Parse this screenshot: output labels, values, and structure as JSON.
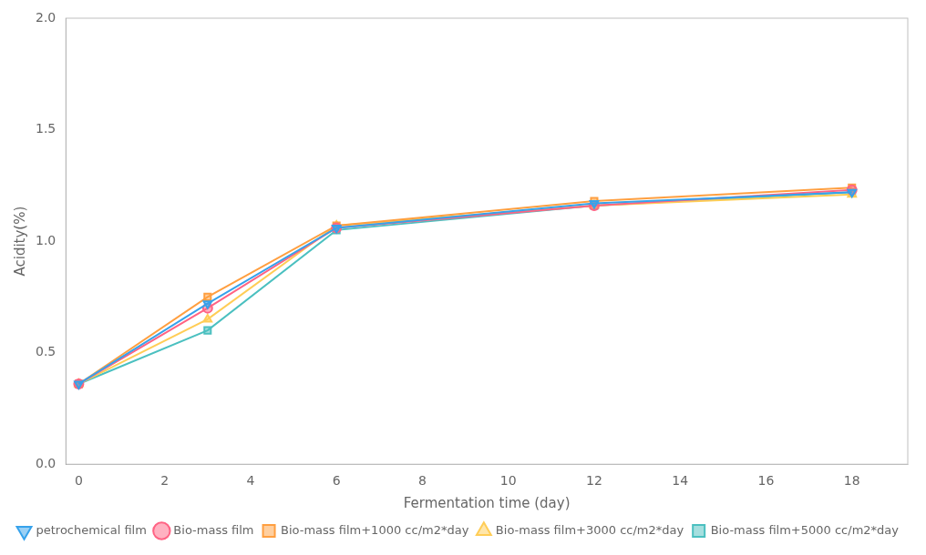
{
  "chart_data": {
    "type": "line",
    "x": [
      0,
      3,
      6,
      12,
      18
    ],
    "series": [
      {
        "name": "petrochemical film",
        "marker": "triangle-down",
        "values": [
          0.36,
          0.72,
          1.06,
          1.17,
          1.22
        ]
      },
      {
        "name": "Bio-mass film",
        "marker": "circle",
        "values": [
          0.36,
          0.7,
          1.06,
          1.16,
          1.23
        ]
      },
      {
        "name": "Bio-mass film+1000 cc/m2*day",
        "marker": "square",
        "values": [
          0.36,
          0.75,
          1.07,
          1.18,
          1.24
        ]
      },
      {
        "name": "Bio-mass film+3000 cc/m2*day",
        "marker": "triangle-up",
        "values": [
          0.36,
          0.65,
          1.07,
          1.16,
          1.21
        ]
      },
      {
        "name": "Bio-mass film+5000 cc/m2*day",
        "marker": "square",
        "values": [
          0.36,
          0.6,
          1.05,
          1.16,
          1.22
        ]
      }
    ],
    "xlabel": "Fermentation time (day)",
    "ylabel": "Acidity(%)",
    "xlim": [
      -0.3,
      19.3
    ],
    "ylim": [
      0.0,
      2.0
    ],
    "xticks": [
      0,
      2,
      4,
      6,
      8,
      10,
      12,
      14,
      16,
      18
    ],
    "yticks": [
      {
        "value": 0,
        "label": "0.0"
      },
      0.5,
      {
        "value": 1,
        "label": "1.0"
      },
      1.5,
      {
        "value": 2,
        "label": "2.0"
      }
    ],
    "grid": false,
    "legend": "bottom"
  }
}
